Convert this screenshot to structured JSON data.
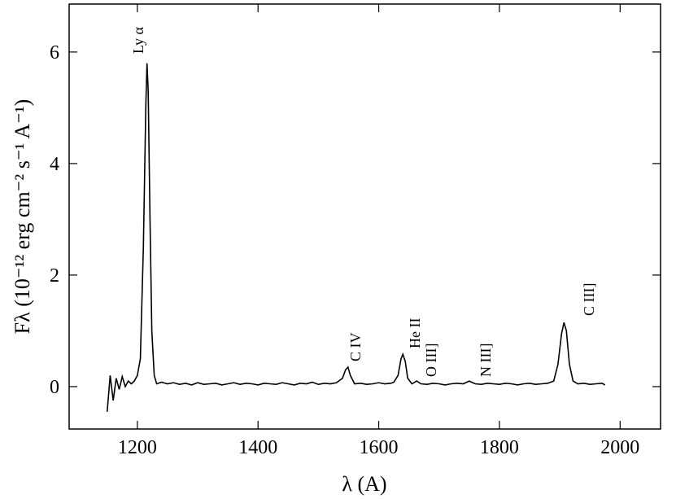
{
  "chart_data": {
    "type": "line",
    "xlabel": "λ (A)",
    "ylabel": "Fλ (10⁻¹² erg cm⁻² s⁻¹ A⁻¹)",
    "annotations": [
      "Ly α",
      "C IV",
      "He II",
      "O III]",
      "N III]",
      "C III]"
    ],
    "xlim": [
      1087,
      2067
    ],
    "ylim": [
      -0.76,
      6.86
    ],
    "xticks": [
      1200,
      1400,
      1600,
      1800,
      2000
    ],
    "yticks": [
      0,
      2,
      4,
      6
    ],
    "grid": false,
    "color": "#000000",
    "x": [
      1150,
      1155,
      1160,
      1165,
      1170,
      1175,
      1180,
      1185,
      1190,
      1195,
      1200,
      1205,
      1210,
      1214,
      1216,
      1218,
      1221,
      1224,
      1228,
      1232,
      1240,
      1250,
      1260,
      1270,
      1280,
      1290,
      1300,
      1310,
      1320,
      1330,
      1340,
      1350,
      1360,
      1370,
      1380,
      1390,
      1400,
      1410,
      1420,
      1430,
      1440,
      1450,
      1460,
      1470,
      1480,
      1490,
      1500,
      1510,
      1520,
      1530,
      1540,
      1545,
      1549,
      1553,
      1560,
      1570,
      1580,
      1590,
      1600,
      1610,
      1620,
      1625,
      1632,
      1637,
      1640,
      1644,
      1648,
      1655,
      1663,
      1670,
      1680,
      1690,
      1700,
      1710,
      1720,
      1730,
      1740,
      1750,
      1760,
      1770,
      1780,
      1790,
      1800,
      1810,
      1820,
      1830,
      1840,
      1850,
      1860,
      1870,
      1880,
      1890,
      1897,
      1903,
      1907,
      1911,
      1916,
      1922,
      1930,
      1940,
      1950,
      1960,
      1970,
      1975
    ],
    "values": [
      -0.45,
      0.2,
      -0.25,
      0.15,
      -0.05,
      0.18,
      0.0,
      0.1,
      0.05,
      0.1,
      0.2,
      0.5,
      2.5,
      5.0,
      5.8,
      5.3,
      3.0,
      1.0,
      0.2,
      0.05,
      0.08,
      0.05,
      0.07,
      0.04,
      0.06,
      0.03,
      0.07,
      0.04,
      0.05,
      0.06,
      0.03,
      0.05,
      0.07,
      0.04,
      0.06,
      0.05,
      0.03,
      0.06,
      0.05,
      0.04,
      0.07,
      0.05,
      0.03,
      0.06,
      0.05,
      0.08,
      0.04,
      0.06,
      0.05,
      0.07,
      0.15,
      0.3,
      0.35,
      0.2,
      0.05,
      0.06,
      0.04,
      0.05,
      0.07,
      0.05,
      0.06,
      0.08,
      0.2,
      0.5,
      0.58,
      0.45,
      0.15,
      0.05,
      0.1,
      0.05,
      0.04,
      0.06,
      0.05,
      0.03,
      0.05,
      0.06,
      0.05,
      0.1,
      0.05,
      0.04,
      0.06,
      0.05,
      0.04,
      0.06,
      0.05,
      0.03,
      0.05,
      0.06,
      0.04,
      0.05,
      0.06,
      0.1,
      0.4,
      0.95,
      1.15,
      1.0,
      0.4,
      0.1,
      0.05,
      0.06,
      0.04,
      0.05,
      0.06,
      0.03
    ]
  }
}
